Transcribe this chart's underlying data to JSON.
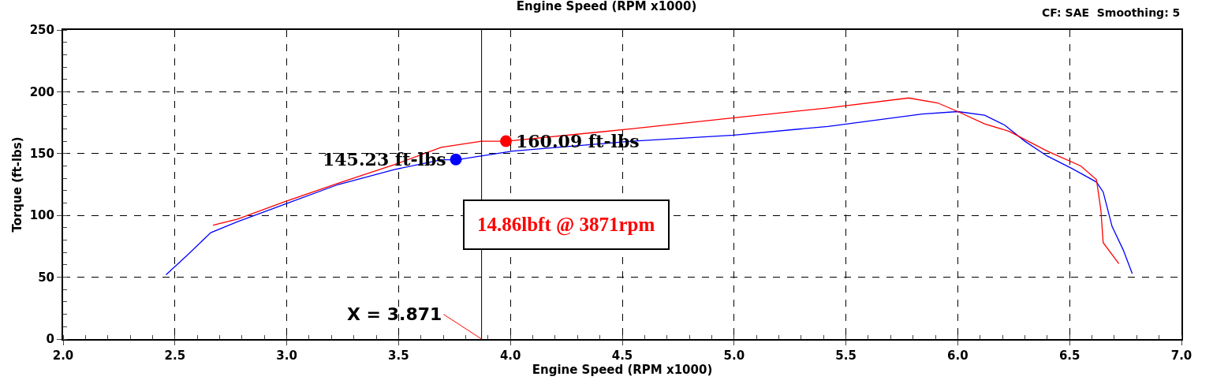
{
  "chart_data": {
    "type": "line",
    "title": "Engine Speed (RPM x1000)",
    "xlabel": "Engine Speed (RPM x1000)",
    "ylabel": "Torque (ft-lbs)",
    "xlim": [
      2.0,
      7.0
    ],
    "xticks": [
      {
        "value": 2,
        "label": "2.0"
      },
      {
        "value": 2.5,
        "label": "2.5"
      },
      {
        "value": 3,
        "label": "3.0"
      },
      {
        "value": 3.5,
        "label": "3.5"
      },
      {
        "value": 4,
        "label": "4.0"
      },
      {
        "value": 4.5,
        "label": "4.5"
      },
      {
        "value": 5,
        "label": "5.0"
      },
      {
        "value": 5.5,
        "label": "5.5"
      },
      {
        "value": 6,
        "label": "6.0"
      },
      {
        "value": 6.5,
        "label": "6.5"
      },
      {
        "value": 7,
        "label": "7.0"
      }
    ],
    "ylim": [
      0,
      250
    ],
    "yticks": [
      0,
      50,
      100,
      150,
      200,
      250
    ],
    "grid": true,
    "marker": "none",
    "line_style": "solid",
    "series": [
      {
        "color": "#0000ff",
        "x": [
          2.46,
          2.55,
          2.66,
          2.78,
          2.99,
          3.23,
          3.48,
          3.69,
          3.76,
          4.01,
          4.54,
          5.0,
          5.42,
          5.84,
          6.0,
          6.12,
          6.21,
          6.3,
          6.4,
          6.51,
          6.62,
          6.65,
          6.69,
          6.74,
          6.78
        ],
        "values": [
          52,
          67,
          86,
          95,
          109,
          125,
          137,
          145,
          145,
          152,
          160,
          165,
          172,
          182,
          184,
          181,
          173,
          160,
          148,
          138,
          127,
          119,
          91,
          72,
          53
        ]
      },
      {
        "color": "#ff0000",
        "x": [
          2.67,
          2.78,
          2.99,
          3.23,
          3.48,
          3.69,
          3.87,
          3.98,
          4.54,
          5.0,
          5.42,
          5.78,
          5.91,
          6.0,
          6.12,
          6.23,
          6.4,
          6.55,
          6.62,
          6.64,
          6.65,
          6.72
        ],
        "values": [
          92,
          97,
          111,
          126,
          141,
          155,
          160,
          160,
          170,
          179,
          187,
          195,
          191,
          184,
          174,
          168,
          152,
          140,
          129,
          104,
          78,
          61
        ]
      },
      {
        "type": "scatter",
        "marker": "circle",
        "color": "#0000ff",
        "x": [
          3.756
        ],
        "values": [
          145.23
        ]
      },
      {
        "type": "scatter",
        "marker": "circle",
        "color": "#ff0000",
        "x": [
          3.98
        ],
        "values": [
          160.09
        ]
      }
    ],
    "ref_lines": [
      {
        "axis": "x",
        "value": 3.871,
        "label": "X = 3.871",
        "color": "#000000"
      }
    ],
    "annotations": [
      {
        "text": "145.23 ft-lbs",
        "x": 3.756,
        "y": 145.23
      },
      {
        "text": "160.09 ft-lbs",
        "x": 3.98,
        "y": 160.09
      },
      "14.86lbft @ 3871rpm",
      "CF: SAE  Smoothing: 5"
    ]
  }
}
